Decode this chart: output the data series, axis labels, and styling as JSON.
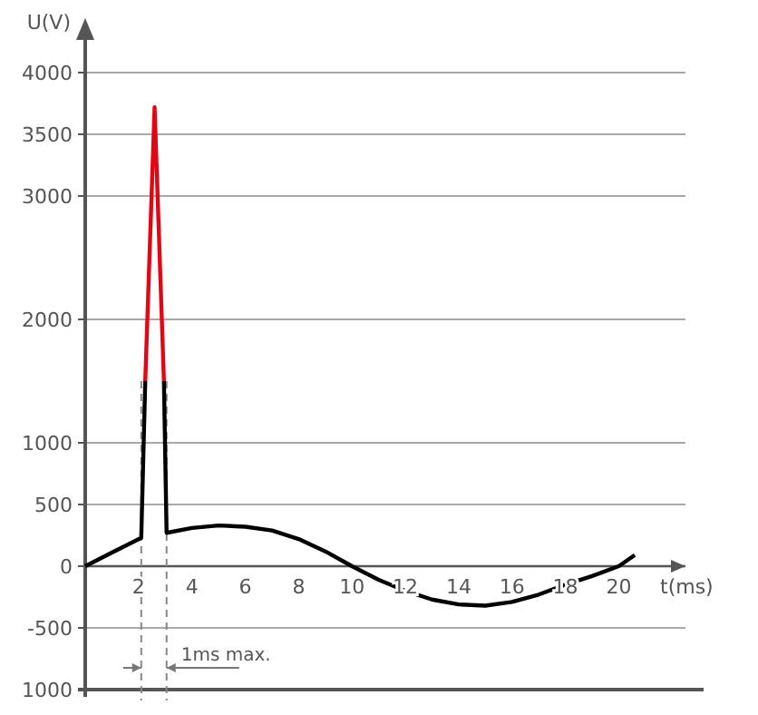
{
  "chart_data": {
    "type": "line",
    "xlabel": "t(ms)",
    "ylabel": "U(V)",
    "xlim": [
      0,
      22.5
    ],
    "xticks": [
      2,
      4,
      6,
      8,
      10,
      12,
      14,
      16,
      18,
      20
    ],
    "ylim": [
      -1000,
      4000
    ],
    "yticks": [
      {
        "value": -1000,
        "label": "1000"
      },
      -500,
      0,
      500,
      1000,
      2000,
      3000,
      3500,
      4000
    ],
    "grid": "y",
    "marker": "none",
    "line_style": "solid",
    "series": [
      {
        "color": "#000000",
        "x": [
          0,
          1,
          2.1,
          2.25,
          2.6,
          2.95,
          3.05,
          4,
          5,
          6,
          7,
          8,
          9,
          10,
          11,
          12,
          13,
          14,
          15,
          16,
          17,
          18,
          19,
          20,
          20.6
        ],
        "values": [
          0,
          110,
          230,
          1500,
          null,
          1500,
          270,
          310,
          330,
          320,
          290,
          220,
          120,
          0,
          -110,
          -200,
          -270,
          -310,
          -320,
          -290,
          -230,
          -150,
          -80,
          0,
          90
        ]
      },
      {
        "color": "#e30613",
        "x": [
          2.25,
          2.6,
          2.95
        ],
        "values": [
          1500,
          3720,
          1500
        ]
      }
    ],
    "ref_lines": [
      {
        "axis": "x",
        "value": 2.1,
        "line_style": "dashed",
        "color": "#888888"
      },
      {
        "axis": "x",
        "value": 3.05,
        "line_style": "dashed",
        "color": "#888888"
      }
    ],
    "annotations": [
      "1ms max."
    ]
  }
}
